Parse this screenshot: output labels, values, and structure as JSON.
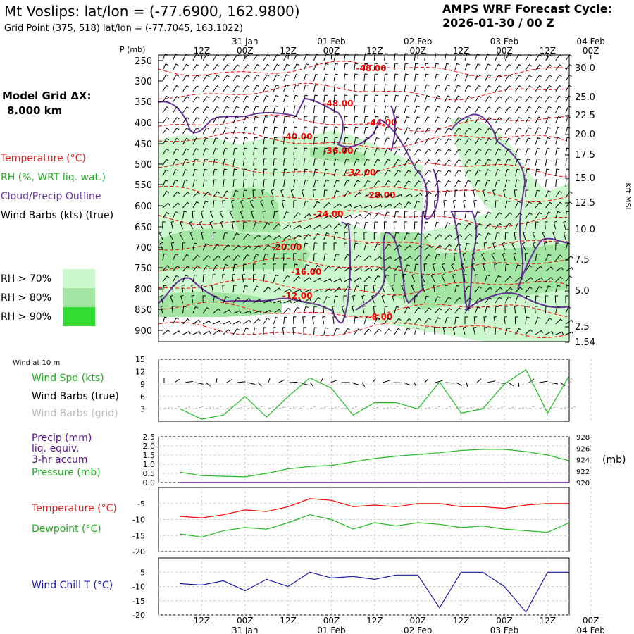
{
  "header": {
    "title": "Mt Voslips:  lat/lon = (-77.6900, 162.9800)",
    "subtitle": "Grid Point (375, 518) lat/lon = (-77.7045, 163.1022)",
    "cycle_line1": "AMPS WRF Forecast Cycle:",
    "cycle_line2": "2026-01-30 / 00  Z"
  },
  "left_legend": {
    "grid_label": "Model Grid ΔX:",
    "grid_value": "8.000 km",
    "temperature": "Temperature (°C)",
    "rh": "RH (%, WRT liq. wat.)",
    "cloud": "Cloud/Precip Outline",
    "wind": "Wind Barbs (kts) (true)",
    "rh70": "RH > 70%",
    "rh80": "RH > 80%",
    "rh90": "RH > 90%"
  },
  "colors": {
    "rh70": "#cdf7cd",
    "rh80": "#a3e6a3",
    "rh90": "#33dd33",
    "temperature": "#ff0000",
    "cloud": "#663399",
    "wind_speed": "#22bb22",
    "precip": "#551188",
    "pressure": "#22bb22",
    "dewpoint": "#22bb22",
    "wind_chill": "#1a1aaa",
    "grid_barbs": "#aaaaaa"
  },
  "time_axis": {
    "top_dates": [
      "31 Jan",
      "01 Feb",
      "02 Feb",
      "03 Feb",
      "04 Feb"
    ],
    "hours": [
      "12Z",
      "00Z",
      "12Z",
      "00Z",
      "12Z",
      "00Z",
      "12Z",
      "00Z",
      "12Z",
      "00Z"
    ],
    "bottom_dates": [
      "31 Jan",
      "01 Feb",
      "02 Feb",
      "03 Feb",
      "04 Feb"
    ]
  },
  "upper": {
    "p_label": "P (mb)",
    "right_axis_label": "Kft MSL",
    "pressure_ticks": [
      "250",
      "300",
      "350",
      "400",
      "450",
      "500",
      "550",
      "600",
      "650",
      "700",
      "750",
      "800",
      "850",
      "900"
    ],
    "kft_ticks": [
      "30.0",
      "25.0",
      "22.5",
      "20.0",
      "17.5",
      "15.0",
      "12.5",
      "10.0",
      "7.5",
      "5.0",
      "2.5",
      "1.54"
    ],
    "temp_labels": [
      "-48.00",
      "-48.00",
      "-44.00",
      "-40.00",
      "-36.00",
      "-32.00",
      "-28.00",
      "-24.00",
      "-20.00",
      "-16.00",
      "-12.00",
      "-8.00"
    ]
  },
  "panels": {
    "wind10": {
      "small_label": "Wind at 10 m",
      "spd": "Wind Spd (kts)",
      "barbs_true": "Wind Barbs (true)",
      "barbs_grid": "Wind Barbs (grid)",
      "yticks": [
        "15",
        "12",
        "9",
        "6",
        "3"
      ]
    },
    "precip": {
      "label1": "Precip (mm)",
      "label2": "liq. equiv.",
      "label3": "3-hr accum",
      "label4": "Pressure (mb)",
      "yticks_left": [
        "2.5",
        "2.0",
        "1.5",
        "1.0",
        "0.5",
        "0.0"
      ],
      "yticks_right": [
        "928",
        "926",
        "924",
        "922",
        "920"
      ],
      "unit_right": "(mb)"
    },
    "temp": {
      "label1": "Temperature (°C)",
      "label2": "Dewpoint (°C)",
      "yticks": [
        "-5",
        "-10",
        "-15",
        "-20"
      ]
    },
    "chill": {
      "label": "Wind Chill T (°C)",
      "yticks": [
        "-5",
        "-10",
        "-15",
        "-20"
      ]
    }
  },
  "chart_data": [
    {
      "type": "line",
      "panel": "wind10",
      "x_hours": [
        0,
        6,
        12,
        18,
        24,
        30,
        36,
        42,
        48,
        54,
        60,
        66,
        72,
        78,
        84,
        90,
        96,
        102,
        108
      ],
      "series": [
        {
          "name": "Wind Spd (kts)",
          "values": [
            3,
            0.5,
            1.5,
            6,
            1,
            6,
            10.5,
            8,
            1.5,
            4.5,
            4.5,
            3,
            9.5,
            2,
            3,
            9,
            12.5,
            2,
            11
          ]
        }
      ],
      "ylim": [
        0,
        15
      ]
    },
    {
      "type": "line",
      "panel": "precip",
      "x_hours": [
        0,
        6,
        12,
        18,
        24,
        30,
        36,
        42,
        48,
        54,
        60,
        66,
        72,
        78,
        84,
        90,
        96,
        102,
        108
      ],
      "series": [
        {
          "name": "Pressure (mb)",
          "values": [
            921.8,
            921.2,
            921.1,
            921.0,
            921.6,
            922.4,
            922.8,
            923.0,
            923.6,
            924.2,
            924.6,
            924.9,
            925.2,
            925.6,
            925.8,
            925.8,
            925.4,
            924.8,
            923.8
          ]
        },
        {
          "name": "Precip (mm)",
          "values": [
            0,
            0,
            0,
            0,
            0,
            0,
            0,
            0,
            0,
            0,
            0,
            0,
            0,
            0,
            0,
            0,
            0,
            0,
            0
          ]
        }
      ],
      "ylim_precip": [
        0,
        2.5
      ],
      "ylim_pressure": [
        920,
        928
      ]
    },
    {
      "type": "line",
      "panel": "temp",
      "x_hours": [
        0,
        6,
        12,
        18,
        24,
        30,
        36,
        42,
        48,
        54,
        60,
        66,
        72,
        78,
        84,
        90,
        96,
        102,
        108
      ],
      "series": [
        {
          "name": "Temperature (°C)",
          "values": [
            -9,
            -9.5,
            -8.5,
            -7,
            -7.5,
            -6,
            -3.5,
            -4,
            -6,
            -5.5,
            -6,
            -5,
            -5,
            -6,
            -6,
            -6.5,
            -5.5,
            -5,
            -5
          ]
        },
        {
          "name": "Dewpoint (°C)",
          "values": [
            -14.5,
            -15.5,
            -13.5,
            -12.5,
            -13,
            -11,
            -8.5,
            -10,
            -13,
            -11,
            -12,
            -11,
            -11.5,
            -12.5,
            -12,
            -13,
            -13.5,
            -14,
            -11
          ]
        }
      ],
      "ylim": [
        -20,
        0
      ]
    },
    {
      "type": "line",
      "panel": "chill",
      "x_hours": [
        0,
        6,
        12,
        18,
        24,
        30,
        36,
        42,
        48,
        54,
        60,
        66,
        72,
        78,
        84,
        90,
        96,
        102,
        108
      ],
      "series": [
        {
          "name": "Wind Chill T (°C)",
          "values": [
            -9,
            -9.5,
            -8,
            -11.5,
            -7.5,
            -10,
            -5,
            -7,
            -6.5,
            -7.5,
            -6,
            -6,
            -17.5,
            -5,
            -5,
            -10,
            -19,
            -5,
            -5
          ]
        }
      ],
      "ylim": [
        -20,
        0
      ]
    }
  ]
}
